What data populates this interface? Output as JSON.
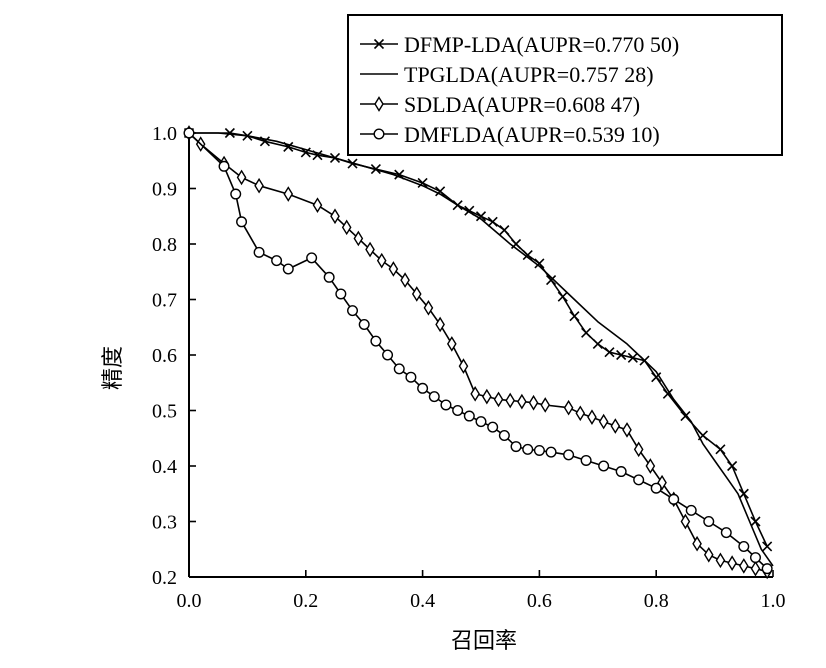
{
  "chart_data": {
    "type": "line",
    "title": "",
    "xlabel": "召回率",
    "ylabel": "精度",
    "xlim": [
      0.0,
      1.0
    ],
    "ylim": [
      0.2,
      1.0
    ],
    "xticks": [
      "0.0",
      "0.2",
      "0.4",
      "0.6",
      "0.8",
      "1.0"
    ],
    "yticks": [
      "0.2",
      "0.3",
      "0.4",
      "0.5",
      "0.6",
      "0.7",
      "0.8",
      "0.9",
      "1.0"
    ],
    "grid": false,
    "legend_position": "top-right",
    "series": [
      {
        "name": "DFMP-LDA(AUPR=0.770 50)",
        "marker": "x",
        "x": [
          0.0,
          0.07,
          0.1,
          0.13,
          0.17,
          0.2,
          0.22,
          0.25,
          0.28,
          0.32,
          0.36,
          0.4,
          0.43,
          0.46,
          0.48,
          0.5,
          0.52,
          0.54,
          0.56,
          0.58,
          0.6,
          0.62,
          0.64,
          0.66,
          0.68,
          0.7,
          0.72,
          0.74,
          0.76,
          0.78,
          0.8,
          0.82,
          0.85,
          0.88,
          0.91,
          0.93,
          0.95,
          0.97,
          0.99
        ],
        "y": [
          1.0,
          1.0,
          0.995,
          0.985,
          0.975,
          0.965,
          0.96,
          0.955,
          0.945,
          0.935,
          0.925,
          0.91,
          0.895,
          0.87,
          0.86,
          0.85,
          0.84,
          0.825,
          0.8,
          0.78,
          0.765,
          0.735,
          0.705,
          0.67,
          0.64,
          0.62,
          0.605,
          0.6,
          0.595,
          0.59,
          0.56,
          0.53,
          0.49,
          0.455,
          0.43,
          0.4,
          0.35,
          0.3,
          0.255
        ]
      },
      {
        "name": "TPGLDA(AUPR=0.757 28)",
        "marker": "none",
        "x": [
          0.0,
          0.05,
          0.1,
          0.15,
          0.2,
          0.25,
          0.3,
          0.35,
          0.4,
          0.43,
          0.46,
          0.5,
          0.55,
          0.6,
          0.65,
          0.7,
          0.75,
          0.8,
          0.83,
          0.86,
          0.88,
          0.9,
          0.92,
          0.94,
          0.96,
          0.98,
          1.0
        ],
        "y": [
          1.0,
          1.0,
          0.995,
          0.985,
          0.97,
          0.955,
          0.94,
          0.925,
          0.905,
          0.89,
          0.87,
          0.845,
          0.8,
          0.76,
          0.71,
          0.66,
          0.62,
          0.57,
          0.52,
          0.48,
          0.44,
          0.41,
          0.38,
          0.35,
          0.3,
          0.25,
          0.22
        ]
      },
      {
        "name": "SDLDA(AUPR=0.608 47)",
        "marker": "diamond",
        "x": [
          0.0,
          0.02,
          0.06,
          0.09,
          0.12,
          0.17,
          0.22,
          0.25,
          0.27,
          0.29,
          0.31,
          0.33,
          0.35,
          0.37,
          0.39,
          0.41,
          0.43,
          0.45,
          0.47,
          0.49,
          0.51,
          0.53,
          0.55,
          0.57,
          0.59,
          0.61,
          0.65,
          0.67,
          0.69,
          0.71,
          0.73,
          0.75,
          0.77,
          0.79,
          0.81,
          0.83,
          0.85,
          0.87,
          0.89,
          0.91,
          0.93,
          0.95,
          0.97,
          0.99
        ],
        "y": [
          1.0,
          0.98,
          0.945,
          0.92,
          0.905,
          0.89,
          0.87,
          0.85,
          0.83,
          0.81,
          0.79,
          0.77,
          0.755,
          0.735,
          0.71,
          0.685,
          0.655,
          0.62,
          0.58,
          0.53,
          0.525,
          0.52,
          0.518,
          0.516,
          0.514,
          0.51,
          0.505,
          0.495,
          0.488,
          0.48,
          0.472,
          0.465,
          0.43,
          0.4,
          0.37,
          0.34,
          0.3,
          0.26,
          0.24,
          0.23,
          0.225,
          0.22,
          0.215,
          0.21
        ]
      },
      {
        "name": "DMFLDA(AUPR=0.539 10)",
        "marker": "circle",
        "x": [
          0.0,
          0.06,
          0.08,
          0.09,
          0.12,
          0.15,
          0.17,
          0.21,
          0.24,
          0.26,
          0.28,
          0.3,
          0.32,
          0.34,
          0.36,
          0.38,
          0.4,
          0.42,
          0.44,
          0.46,
          0.48,
          0.5,
          0.52,
          0.54,
          0.56,
          0.58,
          0.6,
          0.62,
          0.65,
          0.68,
          0.71,
          0.74,
          0.77,
          0.8,
          0.83,
          0.86,
          0.89,
          0.92,
          0.95,
          0.97,
          0.99
        ],
        "y": [
          1.0,
          0.94,
          0.89,
          0.84,
          0.785,
          0.77,
          0.755,
          0.775,
          0.74,
          0.71,
          0.68,
          0.655,
          0.625,
          0.6,
          0.575,
          0.56,
          0.54,
          0.525,
          0.51,
          0.5,
          0.49,
          0.48,
          0.47,
          0.455,
          0.435,
          0.43,
          0.428,
          0.425,
          0.42,
          0.41,
          0.4,
          0.39,
          0.375,
          0.36,
          0.34,
          0.32,
          0.3,
          0.28,
          0.255,
          0.235,
          0.215
        ]
      }
    ]
  }
}
